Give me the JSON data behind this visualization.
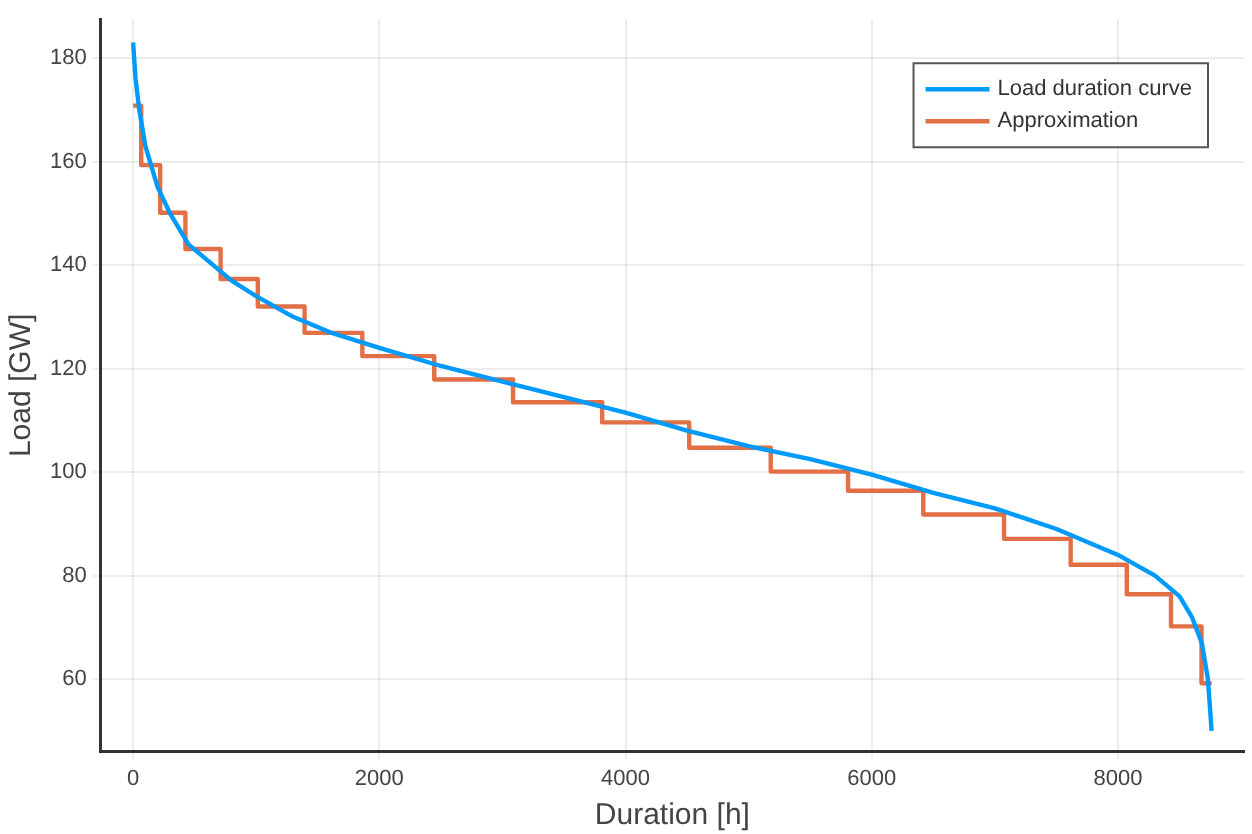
{
  "chart_data": {
    "type": "line",
    "xlabel": "Duration [h]",
    "ylabel": "Load [GW]",
    "xlim": [
      -263,
      9023
    ],
    "ylim": [
      46,
      187.5
    ],
    "xticks": [
      0,
      2000,
      4000,
      6000,
      8000
    ],
    "yticks": [
      60,
      80,
      100,
      120,
      140,
      160,
      180
    ],
    "grid": true,
    "legend": "top right",
    "series": [
      {
        "name": "Load duration curve",
        "type": "line",
        "color": "#009af9",
        "x": [
          0,
          20,
          50,
          100,
          200,
          300,
          450,
          600,
          800,
          1000,
          1300,
          1600,
          2000,
          2500,
          3000,
          3500,
          4000,
          4500,
          5000,
          5500,
          6000,
          6500,
          7000,
          7500,
          8000,
          8300,
          8500,
          8600,
          8680,
          8730,
          8760
        ],
        "values": [
          183,
          176,
          170,
          163,
          155,
          150,
          144,
          141,
          137,
          134,
          130,
          127,
          124,
          120.5,
          117.5,
          114.5,
          111.5,
          108,
          105,
          102.5,
          99.5,
          96,
          93,
          89,
          84,
          80,
          76,
          72,
          67,
          60,
          50
        ]
      },
      {
        "name": "Approximation",
        "type": "step",
        "color": "#e26f46",
        "x": [
          0,
          66,
          220,
          425,
          711,
          1013,
          1393,
          1862,
          2446,
          3086,
          3810,
          4517,
          5179,
          5807,
          6418,
          7074,
          7615,
          8071,
          8430,
          8678,
          8760
        ],
        "values": [
          170.8,
          159.3,
          150.1,
          143.1,
          137.3,
          132.0,
          126.9,
          122.4,
          117.9,
          113.5,
          109.6,
          104.7,
          100.1,
          96.4,
          91.8,
          87.1,
          82.1,
          76.4,
          70.2,
          59.2,
          59.2
        ]
      }
    ]
  }
}
